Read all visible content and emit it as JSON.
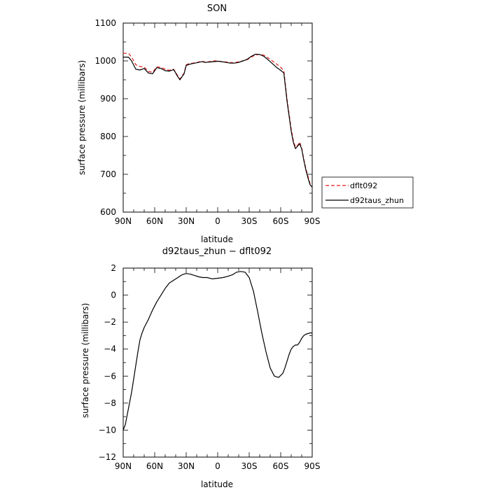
{
  "chart_data": [
    {
      "type": "line",
      "title": "SON",
      "xlabel": "latitude",
      "ylabel": "surface pressure (millibars)",
      "xlim": [
        90,
        -90
      ],
      "ylim": [
        600,
        1100
      ],
      "xticks": [
        90,
        60,
        30,
        0,
        -30,
        -60,
        -90
      ],
      "xtick_labels": [
        "90N",
        "60N",
        "30N",
        "0",
        "30S",
        "60S",
        "90S"
      ],
      "yticks": [
        600,
        700,
        800,
        900,
        1000,
        1100
      ],
      "ytick_labels": [
        "600",
        "700",
        "800",
        "900",
        "1000",
        "1100"
      ],
      "legend": {
        "placement": "right",
        "entries": [
          "dflt092",
          "d92taus_zhun"
        ]
      },
      "series": [
        {
          "name": "dflt092",
          "color": "#e41a1c",
          "style": "dashed",
          "x": [
            90,
            85,
            82,
            78,
            74,
            70,
            66,
            62,
            58,
            54,
            50,
            46,
            42,
            40,
            38,
            36,
            34,
            32,
            30,
            27,
            24,
            20,
            15,
            12,
            8,
            4,
            0,
            -4,
            -8,
            -12,
            -16,
            -20,
            -24,
            -28,
            -32,
            -36,
            -40,
            -44,
            -48,
            -52,
            -56,
            -60,
            -63,
            -66,
            -68,
            -70,
            -72,
            -74,
            -76,
            -78,
            -80,
            -82,
            -84,
            -86,
            -88,
            -90
          ],
          "y": [
            1020,
            1020,
            1010,
            990,
            985,
            984,
            972,
            970,
            984,
            983,
            978,
            975,
            978,
            970,
            960,
            952,
            960,
            968,
            990,
            993,
            994,
            996,
            999,
            997,
            998,
            1000,
            1000,
            998,
            997,
            996,
            995,
            998,
            1000,
            1003,
            1010,
            1016,
            1017,
            1015,
            1008,
            1000,
            992,
            983,
            974,
            900,
            860,
            820,
            790,
            772,
            776,
            785,
            770,
            740,
            715,
            695,
            675,
            670
          ]
        },
        {
          "name": "d92taus_zhun",
          "color": "#000000",
          "style": "solid",
          "x": [
            90,
            85,
            82,
            78,
            74,
            70,
            66,
            62,
            58,
            54,
            50,
            46,
            42,
            40,
            38,
            36,
            34,
            32,
            30,
            27,
            24,
            20,
            15,
            12,
            8,
            4,
            0,
            -4,
            -8,
            -12,
            -16,
            -20,
            -24,
            -28,
            -32,
            -36,
            -40,
            -44,
            -48,
            -52,
            -56,
            -60,
            -63,
            -66,
            -68,
            -70,
            -72,
            -74,
            -76,
            -78,
            -80,
            -82,
            -84,
            -86,
            -88,
            -90
          ],
          "y": [
            1010,
            1010,
            1000,
            978,
            976,
            980,
            968,
            966,
            982,
            980,
            974,
            973,
            977,
            968,
            958,
            950,
            958,
            966,
            988,
            991,
            993,
            995,
            998,
            996,
            997,
            998,
            999,
            998,
            996,
            994,
            994,
            996,
            1000,
            1004,
            1012,
            1018,
            1017,
            1012,
            1003,
            993,
            983,
            975,
            968,
            894,
            854,
            814,
            785,
            768,
            774,
            781,
            767,
            737,
            711,
            690,
            672,
            666
          ]
        }
      ]
    },
    {
      "type": "line",
      "title": "d92taus_zhun − dflt092",
      "xlabel": "latitude",
      "ylabel": "surface pressure (millibars)",
      "xlim": [
        90,
        -90
      ],
      "ylim": [
        -12,
        2
      ],
      "xticks": [
        90,
        60,
        30,
        0,
        -30,
        -60,
        -90
      ],
      "xtick_labels": [
        "90N",
        "60N",
        "30N",
        "0",
        "30S",
        "60S",
        "90S"
      ],
      "yticks": [
        -12,
        -10,
        -8,
        -6,
        -4,
        -2,
        0,
        2
      ],
      "ytick_labels": [
        "−12",
        "−10",
        "−8",
        "−6",
        "−4",
        "−2",
        "0",
        "2"
      ],
      "series": [
        {
          "color": "#000000",
          "style": "solid",
          "x": [
            90,
            88,
            86,
            84,
            82,
            80,
            78,
            76,
            74,
            72,
            70,
            66,
            62,
            58,
            54,
            50,
            46,
            42,
            38,
            34,
            30,
            26,
            22,
            18,
            14,
            10,
            5,
            0,
            -5,
            -10,
            -14,
            -18,
            -22,
            -26,
            -30,
            -34,
            -38,
            -42,
            -46,
            -50,
            -54,
            -58,
            -62,
            -64,
            -66,
            -68,
            -70,
            -72,
            -74,
            -76,
            -78,
            -80,
            -82,
            -84,
            -86,
            -88,
            -90
          ],
          "y": [
            -10.0,
            -9.6,
            -8.8,
            -8.0,
            -7.2,
            -6.2,
            -5.2,
            -4.2,
            -3.3,
            -2.8,
            -2.4,
            -1.8,
            -1.1,
            -0.5,
            0.0,
            0.5,
            0.9,
            1.1,
            1.3,
            1.5,
            1.6,
            1.55,
            1.45,
            1.35,
            1.3,
            1.3,
            1.2,
            1.25,
            1.3,
            1.4,
            1.5,
            1.7,
            1.75,
            1.7,
            1.3,
            0.3,
            -1.2,
            -2.8,
            -4.2,
            -5.4,
            -6.0,
            -6.1,
            -5.8,
            -5.4,
            -4.9,
            -4.4,
            -4.0,
            -3.8,
            -3.7,
            -3.7,
            -3.5,
            -3.2,
            -3.0,
            -2.9,
            -2.85,
            -2.8,
            -2.8
          ]
        }
      ]
    }
  ]
}
